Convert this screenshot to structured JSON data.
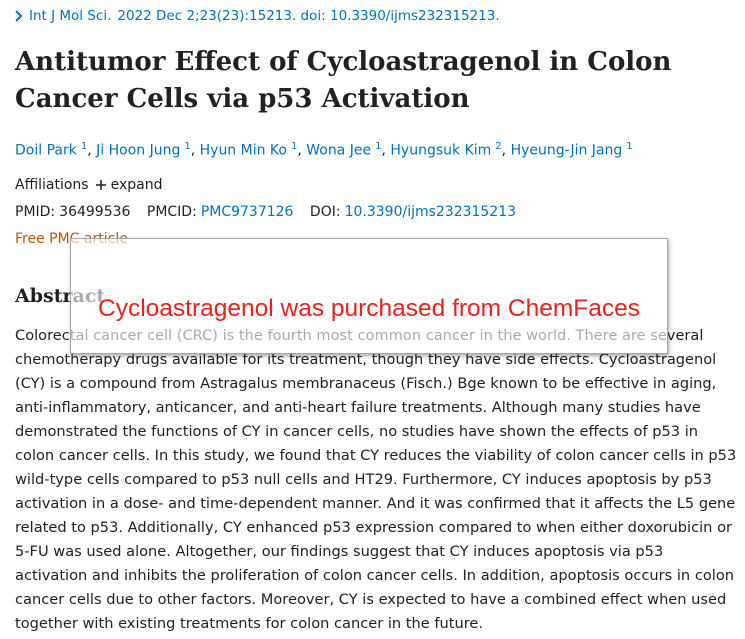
{
  "citation": {
    "journal": "Int J Mol Sci.",
    "details": "2022 Dec 2;23(23):15213. doi: 10.3390/ijms232315213."
  },
  "title": "Antitumor Effect of Cycloastragenol in Colon Cancer Cells via p53 Activation",
  "authors": [
    {
      "name": "Doil Park",
      "affiliation": "1"
    },
    {
      "name": "Ji Hoon Jung",
      "affiliation": "1"
    },
    {
      "name": "Hyun Min Ko",
      "affiliation": "1"
    },
    {
      "name": "Wona Jee",
      "affiliation": "1"
    },
    {
      "name": "Hyungsuk Kim",
      "affiliation": "2"
    },
    {
      "name": "Hyeung-Jin Jang",
      "affiliation": "1"
    }
  ],
  "author_separator": ",",
  "affiliations": {
    "label": "Affiliations",
    "toggle": "expand"
  },
  "identifiers": {
    "pmid_label": "PMID:",
    "pmid": "36499536",
    "pmcid_label": "PMCID:",
    "pmcid": "PMC9737126",
    "doi_label": "DOI:",
    "doi": "10.3390/ijms232315213"
  },
  "free_text": "Free PMC article",
  "abstract": {
    "heading": "Abstract",
    "text": "Colorectal cancer cell (CRC) is the fourth most common cancer in the world. There are several chemotherapy drugs available for its treatment, though they have side effects. Cycloastragenol (CY) is a compound from Astragalus membranaceus (Fisch.) Bge known to be effective in aging, anti-inflammatory, anticancer, and anti-heart failure treatments. Although many studies have demonstrated the functions of CY in cancer cells, no studies have shown the effects of p53 in colon cancer cells. In this study, we found that CY reduces the viability of colon cancer cells in p53 wild-type cells compared to p53 null cells and HT29. Furthermore, CY induces apoptosis by p53 activation in a dose- and time-dependent manner. And it was confirmed that it affects the L5 gene related to p53. Additionally, CY enhanced p53 expression compared to when either doxorubicin or 5-FU was used alone. Altogether, our findings suggest that CY induces apoptosis via p53 activation and inhibits the proliferation of colon cancer cells. In addition, apoptosis occurs in colon cancer cells due to other factors. Moreover, CY is expected to have a combined effect when used together with existing treatments for colon cancer in the future."
  },
  "overlay": {
    "text": "Cycloastragenol was purchased from ChemFaces"
  }
}
